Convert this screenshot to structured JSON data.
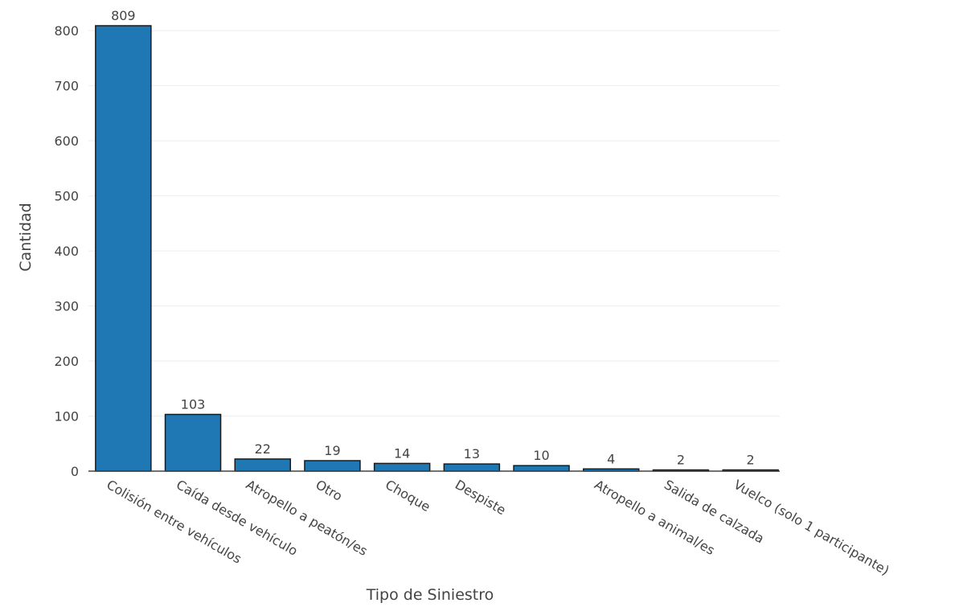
{
  "chart_data": {
    "type": "bar",
    "categories": [
      "Colisión entre vehículos",
      "Caída desde vehículo",
      "Atropello a peatón/es",
      "Otro",
      "Choque",
      "Despiste",
      "",
      "Atropello a animal/es",
      "Salida de calzada",
      "Vuelco (solo 1 participante)"
    ],
    "values": [
      809,
      103,
      22,
      19,
      14,
      13,
      10,
      4,
      2,
      2
    ],
    "data_labels": [
      "809",
      "103",
      "22",
      "19",
      "14",
      "13",
      "10",
      "4",
      "2",
      "2"
    ],
    "xlabel": "Tipo de Siniestro",
    "ylabel": "Cantidad",
    "ylim": [
      0,
      809
    ],
    "yticks": [
      0,
      100,
      200,
      300,
      400,
      500,
      600,
      700,
      800
    ],
    "ytick_labels": [
      "0",
      "100",
      "200",
      "300",
      "400",
      "500",
      "600",
      "700",
      "800"
    ],
    "bar_color": "#1f77b4",
    "bar_outline_color": "#1a1a1a",
    "grid": true
  }
}
